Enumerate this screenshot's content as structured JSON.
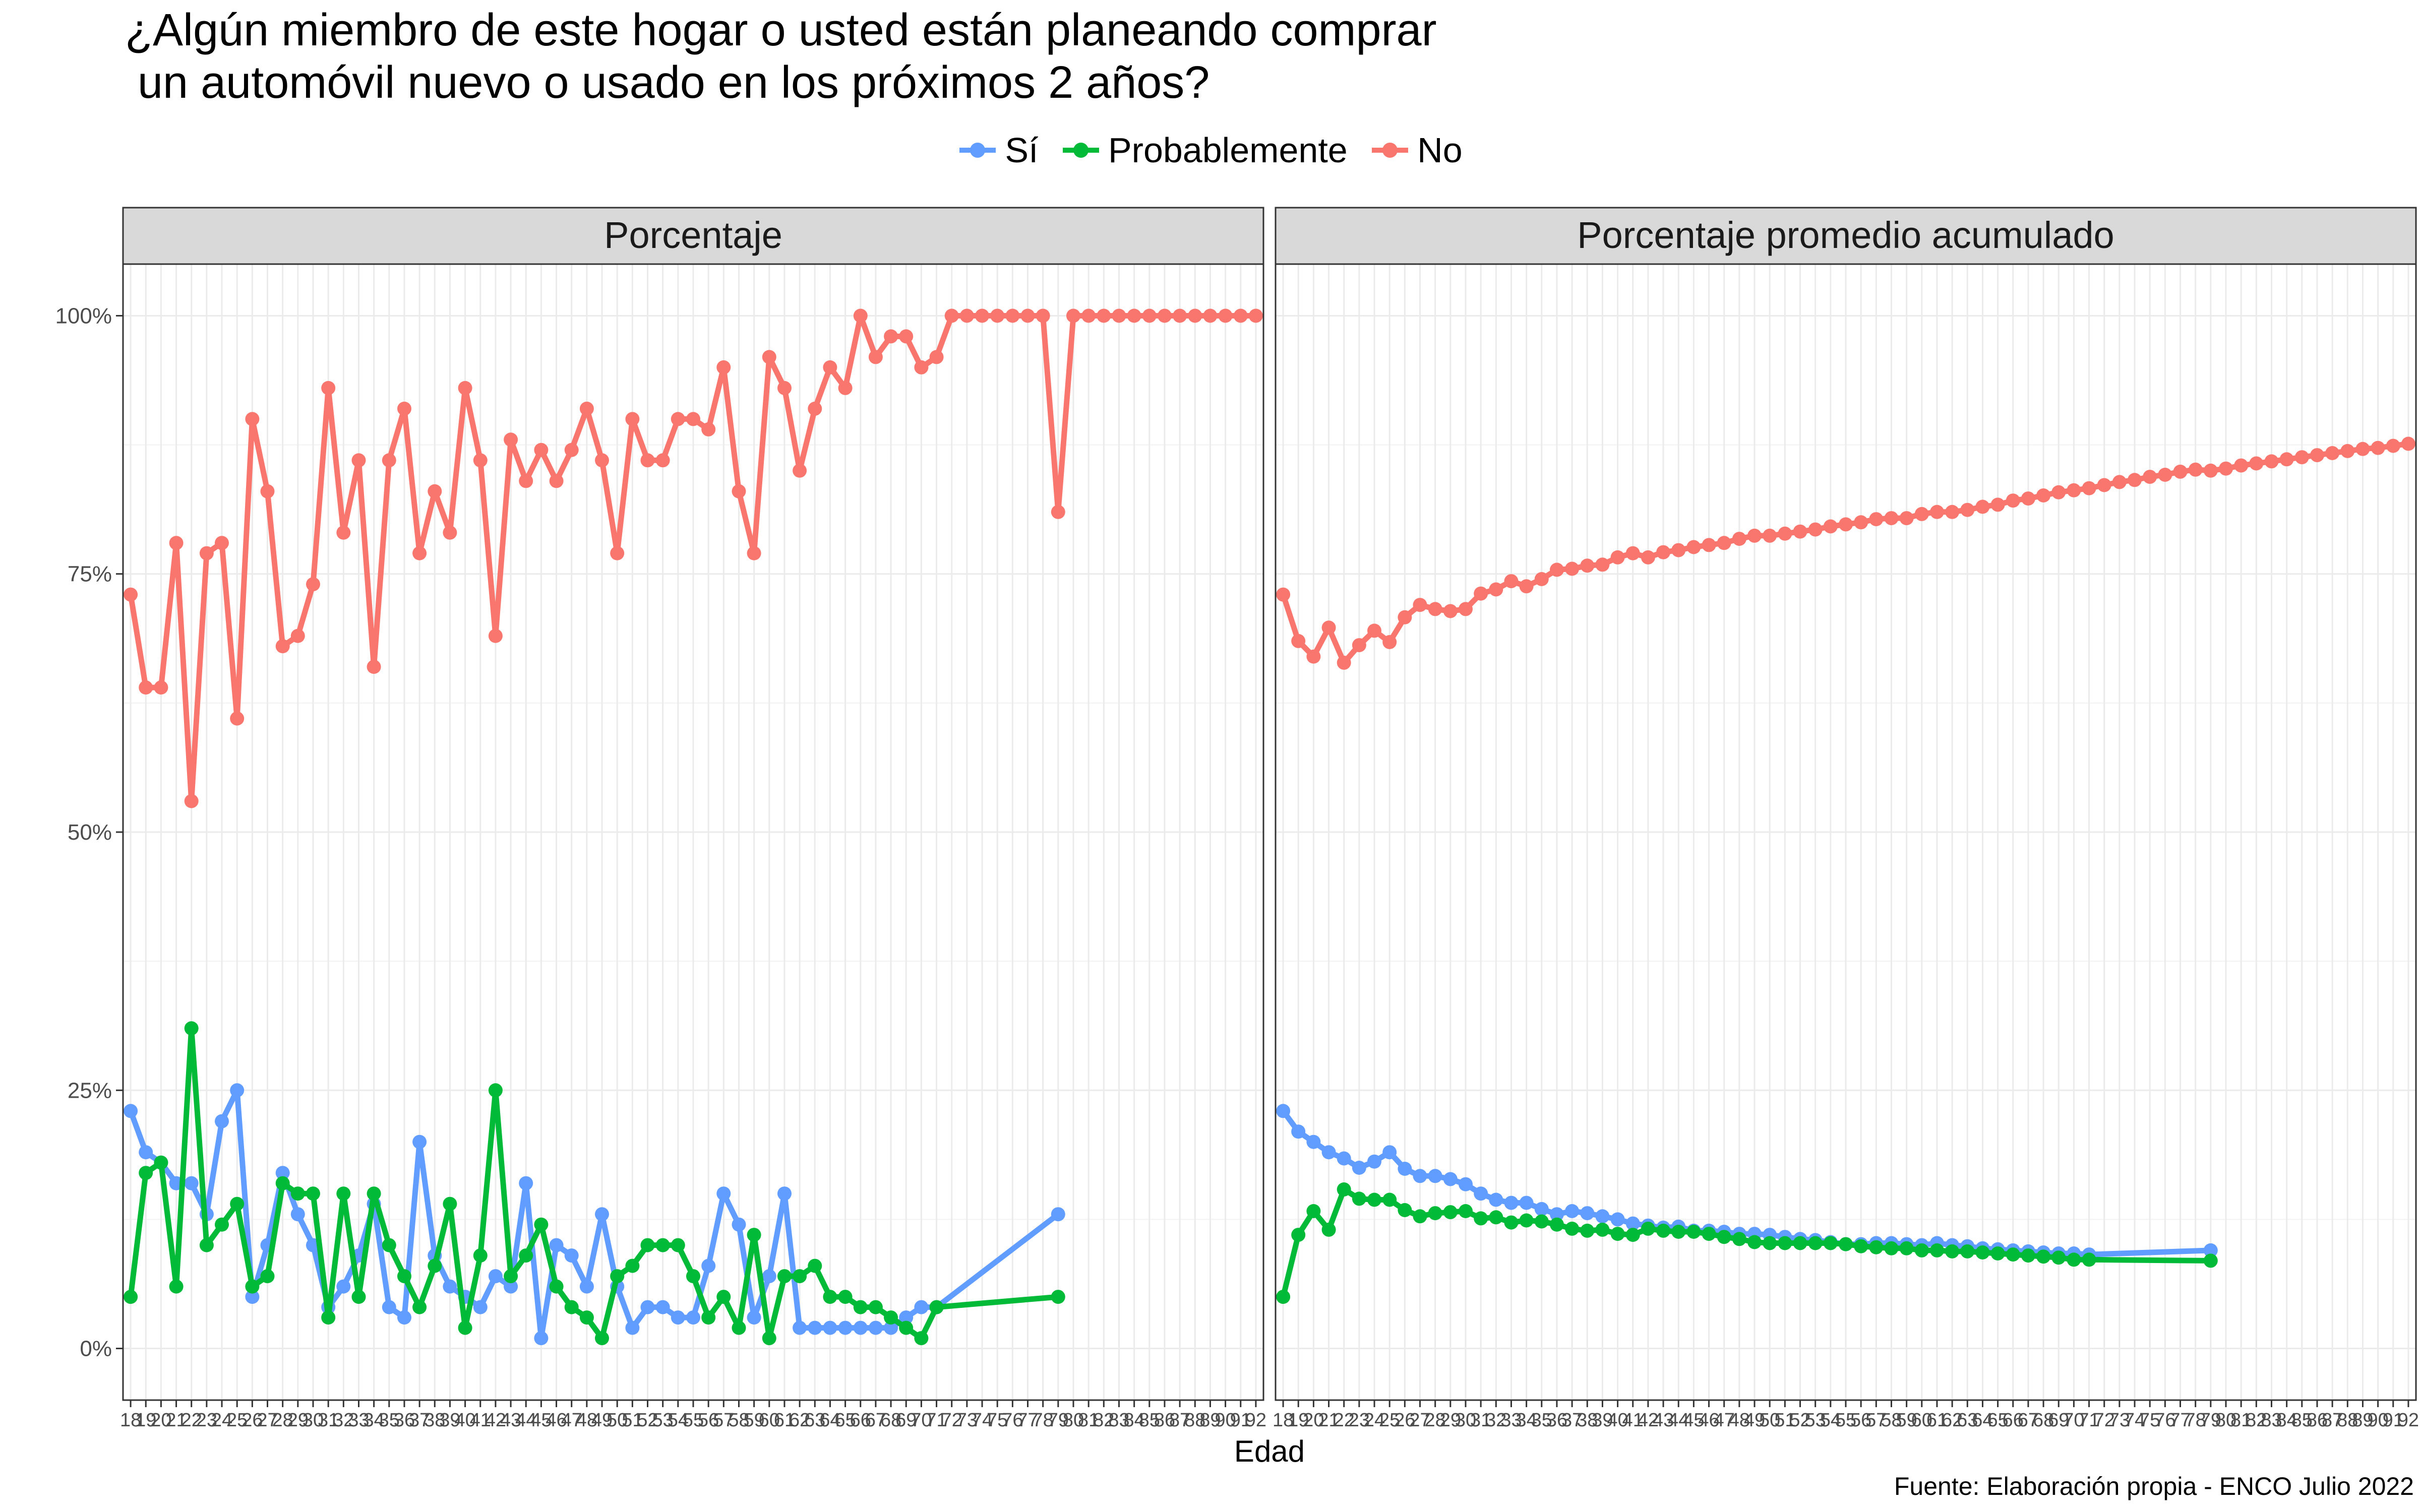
{
  "chart_data": {
    "type": "line",
    "title": "¿Algún miembro de este hogar o usted están planeando comprar\n un automóvil nuevo o usado en los próximos 2 años?",
    "xlabel": "Edad",
    "ylabel": "",
    "caption": "Fuente: Elaboración propia - ENCO Julio 2022",
    "legend_position": "top",
    "grid": true,
    "ylim": [
      -0.05,
      1.05
    ],
    "xlim": [
      17.5,
      92.5
    ],
    "yticks": [
      {
        "value": 0,
        "label": "0%"
      },
      {
        "value": 0.25,
        "label": "25%"
      },
      {
        "value": 0.5,
        "label": "50%"
      },
      {
        "value": 0.75,
        "label": "75%"
      },
      {
        "value": 1,
        "label": "100%"
      }
    ],
    "xticks": [
      18,
      19,
      20,
      21,
      22,
      23,
      24,
      25,
      26,
      27,
      28,
      29,
      30,
      31,
      32,
      33,
      34,
      35,
      36,
      37,
      38,
      39,
      40,
      41,
      42,
      43,
      44,
      45,
      46,
      47,
      48,
      49,
      50,
      51,
      52,
      53,
      54,
      55,
      56,
      57,
      58,
      59,
      60,
      61,
      62,
      63,
      64,
      65,
      66,
      67,
      68,
      69,
      70,
      71,
      72,
      73,
      74,
      75,
      76,
      77,
      78,
      79,
      80,
      81,
      82,
      83,
      84,
      85,
      86,
      87,
      88,
      89,
      90,
      91,
      92
    ],
    "legend": [
      {
        "name": "Sí",
        "color": "#619CFF"
      },
      {
        "name": "Probablemente",
        "color": "#00BA38"
      },
      {
        "name": "No",
        "color": "#F8766D"
      }
    ],
    "panels": [
      {
        "label": "Porcentaje",
        "series": [
          {
            "name": "No",
            "color": "#F8766D",
            "x": [
              18,
              19,
              20,
              21,
              22,
              23,
              24,
              25,
              26,
              27,
              28,
              29,
              30,
              31,
              32,
              33,
              34,
              35,
              36,
              37,
              38,
              39,
              40,
              41,
              42,
              43,
              44,
              45,
              46,
              47,
              48,
              49,
              50,
              51,
              52,
              53,
              54,
              55,
              56,
              57,
              58,
              59,
              60,
              61,
              62,
              63,
              64,
              65,
              66,
              67,
              68,
              69,
              70,
              71,
              72,
              73,
              74,
              75,
              76,
              77,
              78,
              79,
              80,
              81,
              82,
              83,
              84,
              85,
              86,
              87,
              88,
              89,
              90,
              91,
              92
            ],
            "y": [
              0.73,
              0.64,
              0.64,
              0.78,
              0.53,
              0.77,
              0.78,
              0.61,
              0.9,
              0.83,
              0.68,
              0.69,
              0.74,
              0.93,
              0.79,
              0.86,
              0.66,
              0.86,
              0.91,
              0.77,
              0.83,
              0.79,
              0.93,
              0.86,
              0.69,
              0.88,
              0.84,
              0.87,
              0.84,
              0.87,
              0.91,
              0.86,
              0.77,
              0.9,
              0.86,
              0.86,
              0.9,
              0.9,
              0.89,
              0.95,
              0.83,
              0.77,
              0.96,
              0.93,
              0.85,
              0.91,
              0.95,
              0.93,
              1.0,
              0.96,
              0.98,
              0.98,
              0.95,
              0.96,
              1.0,
              1.0,
              1.0,
              1.0,
              1.0,
              1.0,
              1.0,
              0.81,
              1.0,
              1.0,
              1.0,
              1.0,
              1.0,
              1.0,
              1.0,
              1.0,
              1.0,
              1.0,
              1.0,
              1.0,
              1.0
            ]
          },
          {
            "name": "Sí",
            "color": "#619CFF",
            "x": [
              18,
              19,
              20,
              21,
              22,
              23,
              24,
              25,
              26,
              27,
              28,
              29,
              30,
              31,
              32,
              33,
              34,
              35,
              36,
              37,
              38,
              39,
              40,
              41,
              42,
              43,
              44,
              45,
              46,
              47,
              48,
              49,
              50,
              51,
              52,
              53,
              54,
              55,
              56,
              57,
              58,
              59,
              60,
              61,
              62,
              63,
              64,
              65,
              66,
              67,
              68,
              69,
              70,
              71,
              79
            ],
            "y": [
              0.23,
              0.19,
              0.18,
              0.16,
              0.16,
              0.13,
              0.22,
              0.25,
              0.05,
              0.1,
              0.17,
              0.13,
              0.1,
              0.04,
              0.06,
              0.09,
              0.14,
              0.04,
              0.03,
              0.2,
              0.09,
              0.06,
              0.05,
              0.04,
              0.07,
              0.06,
              0.16,
              0.01,
              0.1,
              0.09,
              0.06,
              0.13,
              0.06,
              0.02,
              0.04,
              0.04,
              0.03,
              0.03,
              0.08,
              0.15,
              0.12,
              0.03,
              0.07,
              0.15,
              0.02,
              0.02,
              0.02,
              0.02,
              0.02,
              0.02,
              0.02,
              0.03,
              0.04,
              0.04,
              0.13
            ]
          },
          {
            "name": "Probablemente",
            "color": "#00BA38",
            "x": [
              18,
              19,
              20,
              21,
              22,
              23,
              24,
              25,
              26,
              27,
              28,
              29,
              30,
              31,
              32,
              33,
              34,
              35,
              36,
              37,
              38,
              39,
              40,
              41,
              42,
              43,
              44,
              45,
              46,
              47,
              48,
              49,
              50,
              51,
              52,
              53,
              54,
              55,
              56,
              57,
              58,
              59,
              60,
              61,
              62,
              63,
              64,
              65,
              66,
              67,
              68,
              69,
              70,
              71,
              79
            ],
            "y": [
              0.05,
              0.17,
              0.18,
              0.06,
              0.31,
              0.1,
              0.12,
              0.14,
              0.06,
              0.07,
              0.16,
              0.15,
              0.15,
              0.03,
              0.15,
              0.05,
              0.15,
              0.1,
              0.07,
              0.04,
              0.08,
              0.14,
              0.02,
              0.09,
              0.25,
              0.07,
              0.09,
              0.12,
              0.06,
              0.04,
              0.03,
              0.01,
              0.07,
              0.08,
              0.1,
              0.1,
              0.1,
              0.07,
              0.03,
              0.05,
              0.02,
              0.11,
              0.01,
              0.07,
              0.07,
              0.08,
              0.05,
              0.05,
              0.04,
              0.04,
              0.03,
              0.02,
              0.01,
              0.04,
              0.05
            ]
          }
        ]
      },
      {
        "label": "Porcentaje promedio acumulado",
        "series": [
          {
            "name": "No",
            "color": "#F8766D",
            "x": [
              18,
              19,
              20,
              21,
              22,
              23,
              24,
              25,
              26,
              27,
              28,
              29,
              30,
              31,
              32,
              33,
              34,
              35,
              36,
              37,
              38,
              39,
              40,
              41,
              42,
              43,
              44,
              45,
              46,
              47,
              48,
              49,
              50,
              51,
              52,
              53,
              54,
              55,
              56,
              57,
              58,
              59,
              60,
              61,
              62,
              63,
              64,
              65,
              66,
              67,
              68,
              69,
              70,
              71,
              72,
              73,
              74,
              75,
              76,
              77,
              78,
              79,
              80,
              81,
              82,
              83,
              84,
              85,
              86,
              87,
              88,
              89,
              90,
              91,
              92
            ],
            "y": [
              0.73,
              0.685,
              0.67,
              0.698,
              0.664,
              0.681,
              0.695,
              0.684,
              0.708,
              0.72,
              0.716,
              0.714,
              0.716,
              0.731,
              0.735,
              0.743,
              0.738,
              0.745,
              0.754,
              0.755,
              0.758,
              0.759,
              0.766,
              0.77,
              0.766,
              0.771,
              0.773,
              0.776,
              0.778,
              0.78,
              0.784,
              0.787,
              0.787,
              0.789,
              0.791,
              0.793,
              0.796,
              0.798,
              0.8,
              0.803,
              0.804,
              0.804,
              0.808,
              0.81,
              0.81,
              0.812,
              0.815,
              0.817,
              0.821,
              0.823,
              0.826,
              0.829,
              0.831,
              0.833,
              0.836,
              0.839,
              0.841,
              0.844,
              0.846,
              0.849,
              0.851,
              0.85,
              0.852,
              0.855,
              0.857,
              0.859,
              0.861,
              0.863,
              0.865,
              0.867,
              0.869,
              0.871,
              0.872,
              0.874,
              0.876
            ]
          },
          {
            "name": "Sí",
            "color": "#619CFF",
            "x": [
              18,
              19,
              20,
              21,
              22,
              23,
              24,
              25,
              26,
              27,
              28,
              29,
              30,
              31,
              32,
              33,
              34,
              35,
              36,
              37,
              38,
              39,
              40,
              41,
              42,
              43,
              44,
              45,
              46,
              47,
              48,
              49,
              50,
              51,
              52,
              53,
              54,
              55,
              56,
              57,
              58,
              59,
              60,
              61,
              62,
              63,
              64,
              65,
              66,
              67,
              68,
              69,
              70,
              71,
              79
            ],
            "y": [
              0.23,
              0.21,
              0.2,
              0.19,
              0.184,
              0.175,
              0.181,
              0.19,
              0.174,
              0.167,
              0.167,
              0.164,
              0.159,
              0.15,
              0.144,
              0.141,
              0.141,
              0.135,
              0.13,
              0.133,
              0.131,
              0.128,
              0.125,
              0.121,
              0.119,
              0.117,
              0.118,
              0.114,
              0.114,
              0.113,
              0.111,
              0.111,
              0.11,
              0.108,
              0.106,
              0.105,
              0.103,
              0.101,
              0.101,
              0.102,
              0.102,
              0.101,
              0.1,
              0.102,
              0.1,
              0.099,
              0.097,
              0.096,
              0.095,
              0.094,
              0.093,
              0.092,
              0.092,
              0.091,
              0.095
            ]
          },
          {
            "name": "Probablemente",
            "color": "#00BA38",
            "x": [
              18,
              19,
              20,
              21,
              22,
              23,
              24,
              25,
              26,
              27,
              28,
              29,
              30,
              31,
              32,
              33,
              34,
              35,
              36,
              37,
              38,
              39,
              40,
              41,
              42,
              43,
              44,
              45,
              46,
              47,
              48,
              49,
              50,
              51,
              52,
              53,
              54,
              55,
              56,
              57,
              58,
              59,
              60,
              61,
              62,
              63,
              64,
              65,
              66,
              67,
              68,
              69,
              70,
              71,
              79
            ],
            "y": [
              0.05,
              0.11,
              0.133,
              0.115,
              0.154,
              0.145,
              0.144,
              0.144,
              0.134,
              0.128,
              0.131,
              0.132,
              0.133,
              0.126,
              0.127,
              0.122,
              0.124,
              0.123,
              0.12,
              0.116,
              0.114,
              0.115,
              0.111,
              0.11,
              0.116,
              0.114,
              0.113,
              0.113,
              0.111,
              0.108,
              0.106,
              0.103,
              0.102,
              0.102,
              0.102,
              0.102,
              0.102,
              0.101,
              0.099,
              0.098,
              0.097,
              0.097,
              0.095,
              0.095,
              0.094,
              0.094,
              0.093,
              0.092,
              0.091,
              0.09,
              0.089,
              0.088,
              0.086,
              0.086,
              0.085
            ]
          }
        ]
      }
    ]
  }
}
